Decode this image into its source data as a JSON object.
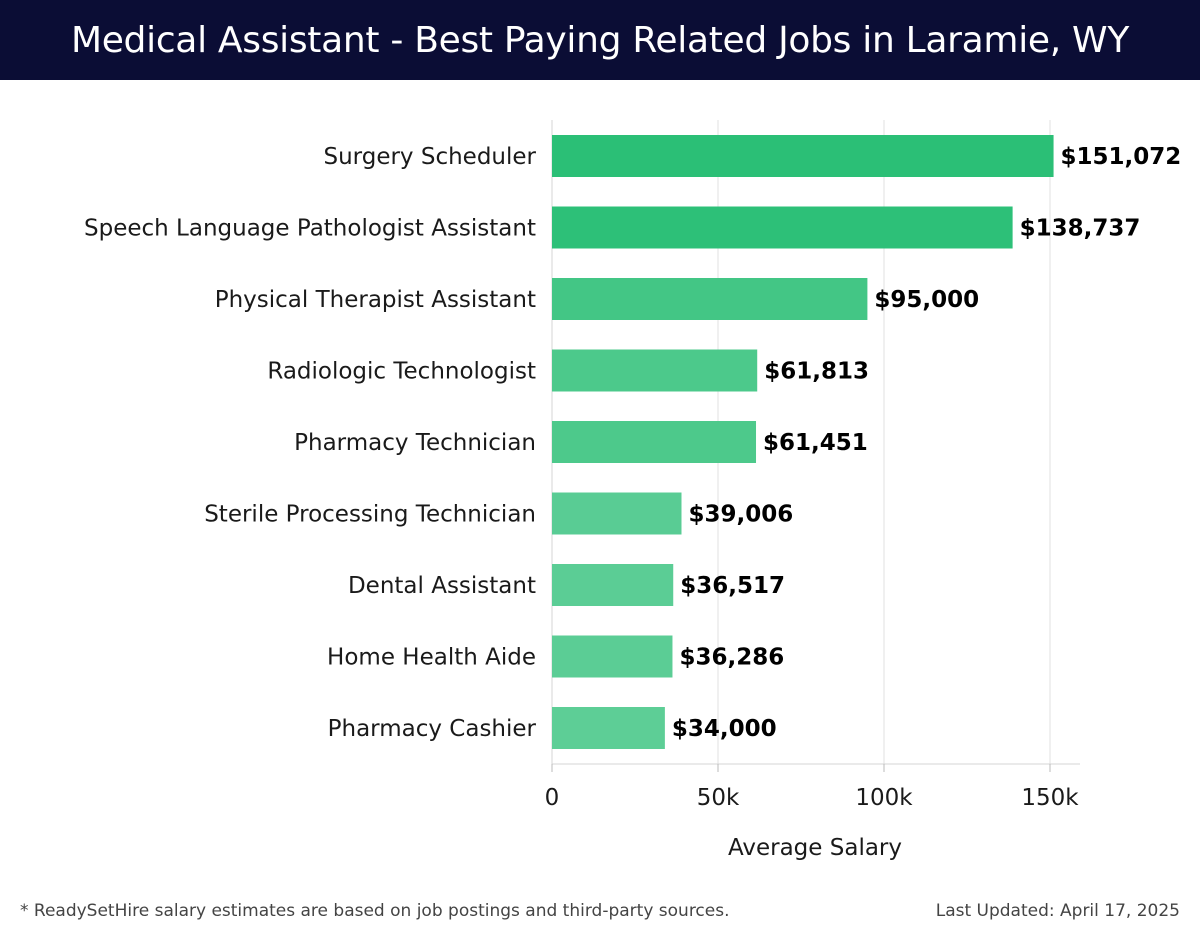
{
  "header": {
    "title": "Medical Assistant - Best Paying Related Jobs in Laramie, WY"
  },
  "chart_data": {
    "type": "bar",
    "orientation": "horizontal",
    "categories": [
      "Surgery Scheduler",
      "Speech Language Pathologist Assistant",
      "Physical Therapist Assistant",
      "Radiologic Technologist",
      "Pharmacy Technician",
      "Sterile Processing Technician",
      "Dental Assistant",
      "Home Health Aide",
      "Pharmacy Cashier"
    ],
    "values": [
      151072,
      138737,
      95000,
      61813,
      61451,
      39006,
      36517,
      36286,
      34000
    ],
    "value_labels": [
      "$151,072",
      "$138,737",
      "$95,000",
      "$61,813",
      "$61,451",
      "$39,006",
      "$36,517",
      "$36,286",
      "$34,000"
    ],
    "bar_colors": [
      "#2bbf76",
      "#2dc078",
      "#43c685",
      "#4cc98b",
      "#4dc98b",
      "#59cc94",
      "#5bcd95",
      "#5bcd95",
      "#5dce96"
    ],
    "xlabel": "Average Salary",
    "xlim": [
      0,
      159000
    ],
    "xticks": [
      0,
      50000,
      100000,
      150000
    ],
    "xtick_labels": [
      "0",
      "50k",
      "100k",
      "150k"
    ],
    "grid": true
  },
  "footer": {
    "note": "* ReadySetHire salary estimates are based on job postings and third-party sources.",
    "updated": "Last Updated: April 17, 2025"
  }
}
